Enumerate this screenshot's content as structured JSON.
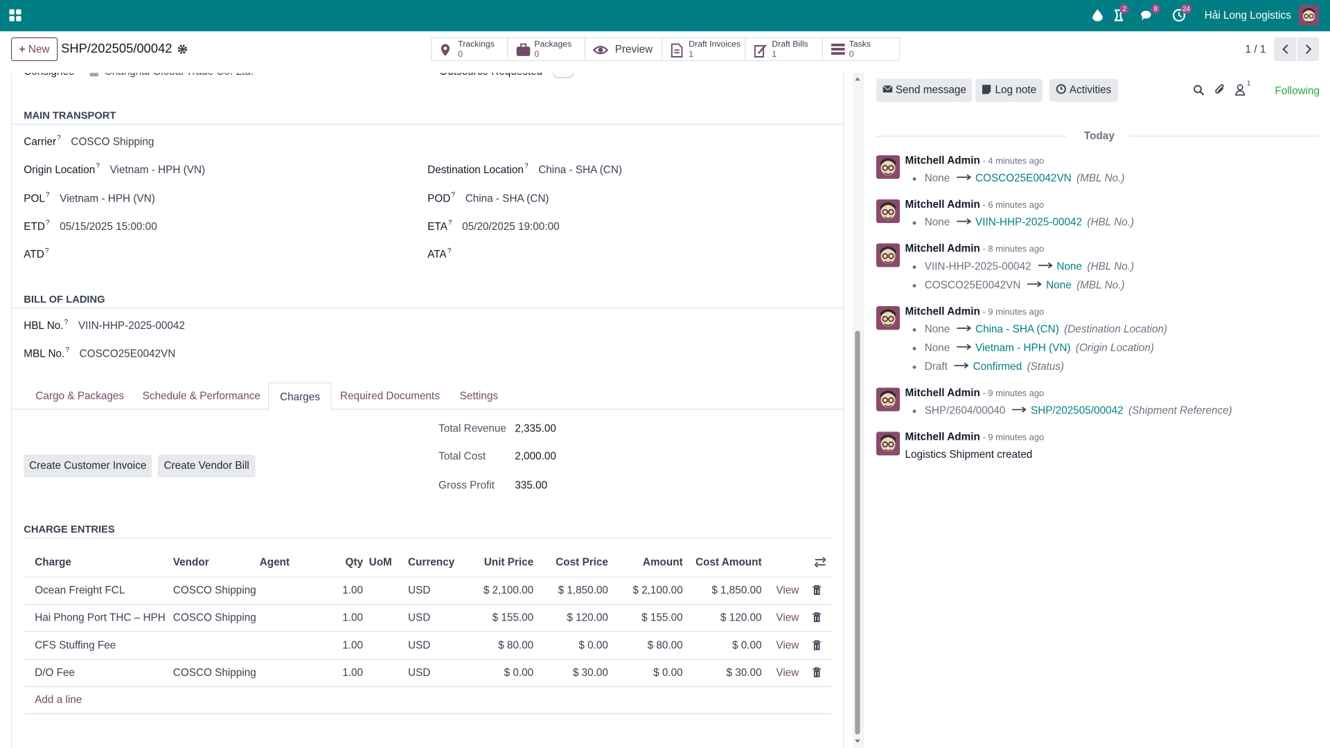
{
  "topbar": {
    "company": "Hải Long Logistics",
    "badges": [
      "2",
      "8",
      "24"
    ]
  },
  "control": {
    "new": "New",
    "record": "SHP/202505/00042",
    "smart_buttons": [
      {
        "label": "Trackings",
        "count": "0"
      },
      {
        "label": "Packages",
        "count": "0"
      },
      {
        "label": "Preview"
      },
      {
        "label": "Draft Invoices",
        "count": "1"
      },
      {
        "label": "Draft Bills",
        "count": "1"
      },
      {
        "label": "Tasks",
        "count": "0"
      }
    ],
    "pager": "1 / 1"
  },
  "form": {
    "help_mark": "?",
    "top_row": [
      {
        "label": "Consignee",
        "value": "Shanghai Global Trade Co. Ltd."
      },
      {
        "label": "Outsource Requested"
      }
    ],
    "main_transport": {
      "title": "MAIN TRANSPORT",
      "rows": [
        [
          {
            "label": "Carrier",
            "value": "COSCO Shipping"
          }
        ],
        [
          {
            "label": "Origin Location",
            "value": "Vietnam - HPH (VN)"
          },
          {
            "label": "Destination Location",
            "value": "China - SHA (CN)"
          }
        ],
        [
          {
            "label": "POL",
            "value": "Vietnam - HPH (VN)"
          },
          {
            "label": "POD",
            "value": "China - SHA (CN)"
          }
        ],
        [
          {
            "label": "ETD",
            "value": "05/15/2025 15:00:00"
          },
          {
            "label": "ETA",
            "value": "05/20/2025 19:00:00"
          }
        ],
        [
          {
            "label": "ATD"
          },
          {
            "label": "ATA"
          }
        ]
      ]
    },
    "bill_of_lading": {
      "title": "BILL OF LADING",
      "rows": [
        [
          {
            "label": "HBL No.",
            "value": "VIIN-HHP-2025-00042"
          }
        ],
        [
          {
            "label": "MBL No.",
            "value": "COSCO25E0042VN"
          }
        ]
      ]
    },
    "tabs": [
      "Cargo & Packages",
      "Schedule & Performance",
      "Charges",
      "Required Documents",
      "Settings"
    ],
    "active_tab": 2,
    "totals": [
      {
        "label": "Total Revenue",
        "value": "2,335.00"
      },
      {
        "label": "Total Cost",
        "value": "2,000.00"
      },
      {
        "label": "Gross Profit",
        "value": "335.00"
      }
    ],
    "buttons": [
      "Create Customer Invoice",
      "Create Vendor Bill"
    ],
    "charges": {
      "title": "CHARGE ENTRIES",
      "columns": [
        "Charge",
        "Vendor",
        "Agent",
        "Qty",
        "UoM",
        "Currency",
        "Unit Price",
        "Cost Price",
        "Amount",
        "Cost Amount"
      ],
      "rows": [
        [
          "Ocean Freight FCL",
          "COSCO Shipping",
          "",
          "1.00",
          "",
          "USD",
          "$ 2,100.00",
          "$ 1,850.00",
          "$ 2,100.00",
          "$ 1,850.00"
        ],
        [
          "Hai Phong Port THC – HPH",
          "COSCO Shipping",
          "",
          "1.00",
          "",
          "USD",
          "$ 155.00",
          "$ 120.00",
          "$ 155.00",
          "$ 120.00"
        ],
        [
          "CFS Stuffing Fee",
          "",
          "",
          "1.00",
          "",
          "USD",
          "$ 80.00",
          "$ 0.00",
          "$ 80.00",
          "$ 0.00"
        ],
        [
          "D/O Fee",
          "COSCO Shipping",
          "",
          "1.00",
          "",
          "USD",
          "$ 0.00",
          "$ 30.00",
          "$ 0.00",
          "$ 30.00"
        ]
      ],
      "row_action": "View",
      "add_line": "Add a line"
    }
  },
  "chatter": {
    "buttons": [
      "Send message",
      "Log note",
      "Activities"
    ],
    "followers": "1",
    "following": "Following",
    "day": "Today",
    "messages": [
      {
        "author": "Mitchell Admin",
        "time": "- 4 minutes ago",
        "changes": [
          {
            "old": "None",
            "new": "COSCO25E0042VN",
            "field": "(MBL No.)"
          }
        ]
      },
      {
        "author": "Mitchell Admin",
        "time": "- 6 minutes ago",
        "changes": [
          {
            "old": "None",
            "new": "VIIN-HHP-2025-00042",
            "field": "(HBL No.)"
          }
        ]
      },
      {
        "author": "Mitchell Admin",
        "time": "- 8 minutes ago",
        "changes": [
          {
            "old": "VIIN-HHP-2025-00042",
            "new": "None",
            "field": "(HBL No.)"
          },
          {
            "old": "COSCO25E0042VN",
            "new": "None",
            "field": "(MBL No.)"
          }
        ]
      },
      {
        "author": "Mitchell Admin",
        "time": "- 9 minutes ago",
        "changes": [
          {
            "old": "None",
            "new": "China - SHA (CN)",
            "field": "(Destination Location)"
          },
          {
            "old": "None",
            "new": "Vietnam - HPH (VN)",
            "field": "(Origin Location)"
          },
          {
            "old": "Draft",
            "new": "Confirmed",
            "field": "(Status)"
          }
        ]
      },
      {
        "author": "Mitchell Admin",
        "time": "- 9 minutes ago",
        "changes": [
          {
            "old": "SHP/2604/00040",
            "new": "SHP/202505/00042",
            "field": "(Shipment Reference)"
          }
        ]
      },
      {
        "author": "Mitchell Admin",
        "time": "- 9 minutes ago",
        "body": "Logistics Shipment created"
      }
    ]
  }
}
